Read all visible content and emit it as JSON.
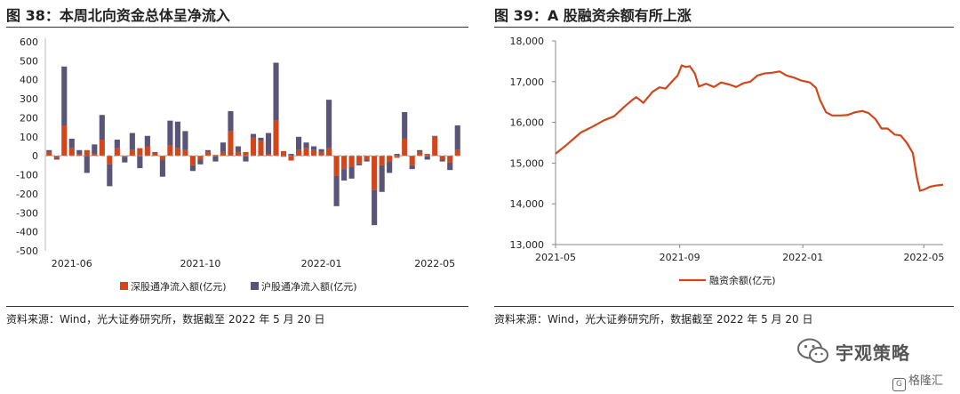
{
  "left": {
    "title": "图 38：本周北向资金总体呈净流入",
    "source": "资料来源：Wind，光大证券研究所，数据截至 2022 年 5 月 20 日"
  },
  "right": {
    "title": "图 39：A 股融资余额有所上涨",
    "source": "资料来源：Wind，光大证券研究所，数据截至 2022 年 5 月 20 日"
  },
  "watermark": {
    "name": "宇观策略",
    "badge": "格隆汇",
    "icon": "wechat-icon"
  },
  "chart_data": [
    {
      "type": "bar",
      "stacked": true,
      "ylim": [
        -500,
        600
      ],
      "yticks": [
        600,
        500,
        400,
        300,
        200,
        100,
        0,
        -100,
        -200,
        -300,
        -400,
        -500
      ],
      "xtick_labels": [
        "2021-06",
        "2021-10",
        "2022-01",
        "2022-05"
      ],
      "xtick_positions": [
        3,
        20,
        36,
        51
      ],
      "legend_position": "bottom",
      "series": [
        {
          "name": "深股通净流入额(亿元)",
          "color": "#d2461b",
          "values": [
            20,
            -10,
            160,
            40,
            10,
            30,
            10,
            85,
            -45,
            40,
            -5,
            30,
            40,
            50,
            15,
            -20,
            55,
            40,
            30,
            -50,
            -20,
            20,
            5,
            20,
            130,
            20,
            20,
            95,
            80,
            10,
            185,
            25,
            -25,
            30,
            40,
            30,
            20,
            40,
            -105,
            -70,
            -60,
            -40,
            -20,
            -180,
            -50,
            -30,
            -10,
            90,
            -50,
            20,
            10,
            100,
            -20,
            -35,
            30
          ]
        },
        {
          "name": "沪股通净流入额(亿元)",
          "color": "#5a5478",
          "values": [
            10,
            -10,
            310,
            50,
            20,
            -90,
            50,
            130,
            -115,
            45,
            -30,
            90,
            -65,
            55,
            5,
            -90,
            130,
            140,
            100,
            -30,
            -25,
            10,
            -30,
            50,
            105,
            30,
            -30,
            20,
            15,
            110,
            305,
            -5,
            10,
            70,
            30,
            20,
            15,
            255,
            -160,
            -60,
            -60,
            -10,
            -10,
            -185,
            -140,
            -60,
            10,
            140,
            -20,
            10,
            -20,
            5,
            -10,
            -40,
            130
          ]
        }
      ]
    },
    {
      "type": "line",
      "ylim": [
        13000,
        18000
      ],
      "yticks": [
        "18,000",
        "17,000",
        "16,000",
        "15,000",
        "14,000",
        "13,000"
      ],
      "xtick_labels": [
        "2021-05",
        "2021-09",
        "2022-01",
        "2022-05"
      ],
      "x_domain": [
        "2021-05-01",
        "2022-05-20"
      ],
      "xtick_dates": [
        "2021-05-01",
        "2021-09-01",
        "2022-01-01",
        "2022-05-01"
      ],
      "legend_position": "bottom",
      "series": [
        {
          "name": "融资余额(亿元)",
          "color": "#d2461b",
          "points": [
            [
              "2021-05-01",
              15230
            ],
            [
              "2021-05-12",
              15450
            ],
            [
              "2021-05-26",
              15750
            ],
            [
              "2021-06-07",
              15900
            ],
            [
              "2021-06-18",
              16050
            ],
            [
              "2021-06-28",
              16150
            ],
            [
              "2021-07-08",
              16380
            ],
            [
              "2021-07-16",
              16550
            ],
            [
              "2021-07-20",
              16620
            ],
            [
              "2021-07-27",
              16480
            ],
            [
              "2021-08-05",
              16750
            ],
            [
              "2021-08-12",
              16860
            ],
            [
              "2021-08-18",
              16830
            ],
            [
              "2021-08-25",
              17020
            ],
            [
              "2021-08-30",
              17150
            ],
            [
              "2021-09-03",
              17400
            ],
            [
              "2021-09-07",
              17360
            ],
            [
              "2021-09-11",
              17380
            ],
            [
              "2021-09-16",
              17200
            ],
            [
              "2021-09-20",
              16880
            ],
            [
              "2021-09-27",
              16950
            ],
            [
              "2021-10-05",
              16870
            ],
            [
              "2021-10-12",
              16980
            ],
            [
              "2021-10-20",
              16930
            ],
            [
              "2021-10-27",
              16870
            ],
            [
              "2021-11-03",
              16960
            ],
            [
              "2021-11-10",
              17000
            ],
            [
              "2021-11-17",
              17150
            ],
            [
              "2021-11-24",
              17200
            ],
            [
              "2021-12-02",
              17220
            ],
            [
              "2021-12-09",
              17250
            ],
            [
              "2021-12-16",
              17150
            ],
            [
              "2021-12-23",
              17100
            ],
            [
              "2021-12-30",
              17030
            ],
            [
              "2022-01-08",
              16980
            ],
            [
              "2022-01-14",
              16850
            ],
            [
              "2022-01-18",
              16550
            ],
            [
              "2022-01-24",
              16250
            ],
            [
              "2022-01-30",
              16170
            ],
            [
              "2022-02-07",
              16170
            ],
            [
              "2022-02-14",
              16180
            ],
            [
              "2022-02-22",
              16250
            ],
            [
              "2022-03-01",
              16280
            ],
            [
              "2022-03-07",
              16230
            ],
            [
              "2022-03-14",
              16080
            ],
            [
              "2022-03-20",
              15850
            ],
            [
              "2022-03-26",
              15850
            ],
            [
              "2022-04-02",
              15700
            ],
            [
              "2022-04-08",
              15680
            ],
            [
              "2022-04-14",
              15500
            ],
            [
              "2022-04-20",
              15250
            ],
            [
              "2022-04-24",
              14650
            ],
            [
              "2022-04-27",
              14320
            ],
            [
              "2022-05-01",
              14350
            ],
            [
              "2022-05-07",
              14420
            ],
            [
              "2022-05-13",
              14450
            ],
            [
              "2022-05-20",
              14470
            ]
          ]
        }
      ]
    }
  ]
}
